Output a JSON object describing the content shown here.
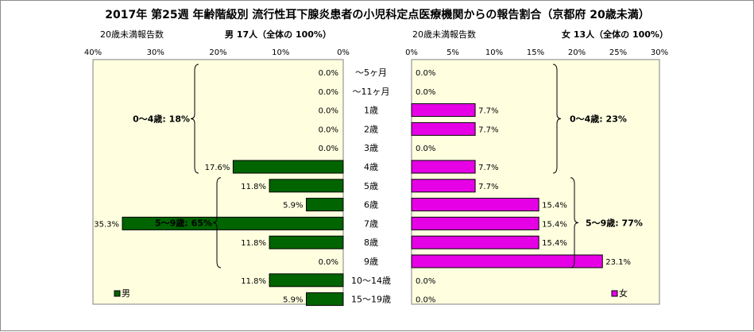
{
  "chart_data": {
    "type": "bar",
    "title": "2017年 第25週 年齢階級別 流行性耳下腺炎患者の小児科定点医療機関からの報告割合（京都府 20歳未満）",
    "categories": [
      "～5ヶ月",
      "～11ヶ月",
      "1歳",
      "2歳",
      "3歳",
      "4歳",
      "5歳",
      "6歳",
      "7歳",
      "8歳",
      "9歳",
      "10～14歳",
      "15～19歳"
    ],
    "left_panel": {
      "header_left": "20歳未満報告数",
      "header_right": "男 17人（全体の 100%）",
      "xlim": [
        0,
        40
      ],
      "ticks": [
        "40%",
        "30%",
        "20%",
        "10%",
        "0%"
      ],
      "tick_values": [
        40,
        30,
        20,
        10,
        0
      ],
      "series": [
        {
          "name": "男",
          "color": "#006400",
          "values": [
            0.0,
            0.0,
            0.0,
            0.0,
            0.0,
            17.6,
            11.8,
            5.9,
            35.3,
            11.8,
            0.0,
            11.8,
            5.9
          ],
          "labels": [
            "0.0%",
            "0.0%",
            "0.0%",
            "0.0%",
            "0.0%",
            "17.6%",
            "11.8%",
            "5.9%",
            "35.3%",
            "11.8%",
            "0.0%",
            "11.8%",
            "5.9%"
          ]
        }
      ],
      "groups": [
        {
          "label": "0～4歳: 18%",
          "from": 0,
          "to": 5
        },
        {
          "label": "5～9歳: 65%",
          "from": 6,
          "to": 10
        }
      ]
    },
    "right_panel": {
      "header_left": "20歳未満報告数",
      "header_right": "女 13人（全体の 100%）",
      "xlim": [
        0,
        30
      ],
      "ticks": [
        "0%",
        "5%",
        "10%",
        "15%",
        "20%",
        "25%",
        "30%"
      ],
      "tick_values": [
        0,
        5,
        10,
        15,
        20,
        25,
        30
      ],
      "series": [
        {
          "name": "女",
          "color": "#e600e6",
          "values": [
            0.0,
            0.0,
            7.7,
            7.7,
            0.0,
            7.7,
            7.7,
            15.4,
            15.4,
            15.4,
            23.1,
            0.0,
            0.0
          ],
          "labels": [
            "0.0%",
            "0.0%",
            "7.7%",
            "7.7%",
            "0.0%",
            "7.7%",
            "7.7%",
            "15.4%",
            "15.4%",
            "15.4%",
            "23.1%",
            "0.0%",
            "0.0%"
          ]
        }
      ],
      "groups": [
        {
          "label": "0～4歳: 23%",
          "from": 0,
          "to": 5
        },
        {
          "label": "5～9歳: 77%",
          "from": 6,
          "to": 10
        }
      ]
    },
    "legend": [
      {
        "label": "男",
        "color": "#006400",
        "placement": "bottom-left"
      },
      {
        "label": "女",
        "color": "#e600e6",
        "placement": "bottom-right"
      }
    ]
  }
}
